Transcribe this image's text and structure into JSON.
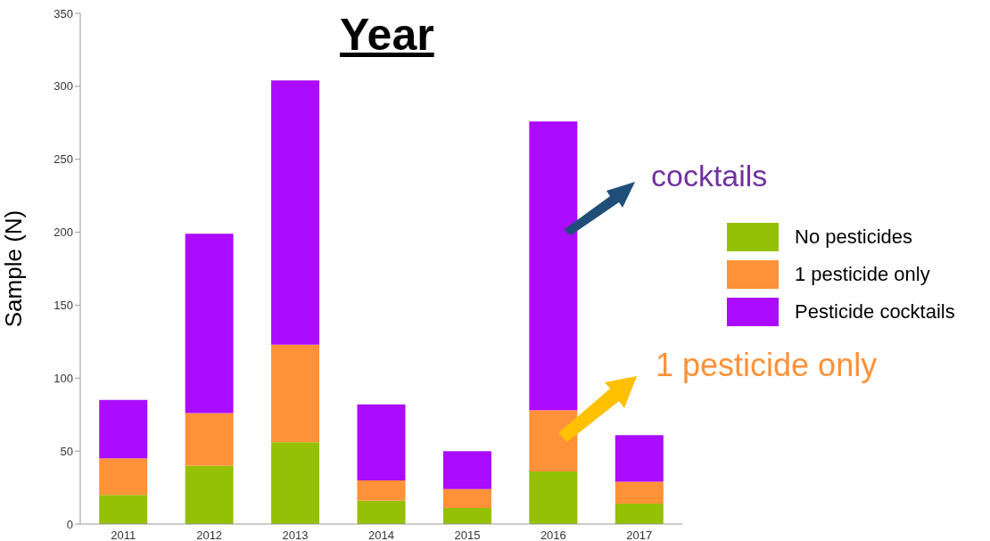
{
  "chart_data": {
    "type": "bar",
    "title": "Year",
    "ylabel": "Sample (N)",
    "stacked": true,
    "categories": [
      "2011",
      "2012",
      "2013",
      "2014",
      "2015",
      "2016",
      "2017"
    ],
    "series": [
      {
        "name": "No pesticides",
        "color": "#94c005",
        "values": [
          20,
          40,
          56,
          16,
          11,
          36,
          14
        ]
      },
      {
        "name": "1 pesticide only",
        "color": "#ff9138",
        "values": [
          25,
          36,
          67,
          14,
          13,
          42,
          15
        ]
      },
      {
        "name": "Pesticide cocktails",
        "color": "#ab0bff",
        "values": [
          40,
          123,
          181,
          52,
          26,
          198,
          32
        ]
      }
    ],
    "ylim": [
      0,
      350
    ],
    "yticks": [
      0,
      50,
      100,
      150,
      200,
      250,
      300,
      350
    ],
    "grid": false,
    "legend": "right",
    "annotations": [
      "cocktails",
      "1 pesticide only"
    ]
  }
}
